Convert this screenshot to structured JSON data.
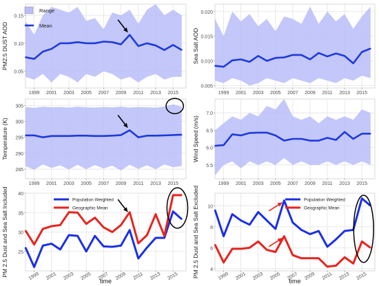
{
  "chart_data": [
    {
      "type": "area",
      "ylabel": "PM2.5 DUST AOD",
      "xlim": [
        1998,
        2016.5
      ],
      "ylim": [
        0.02,
        0.17
      ],
      "yticks": [
        0.05,
        0.1,
        0.15
      ],
      "yticklabels": [
        "0.05",
        "0.10",
        "0.15"
      ],
      "xticks": [
        1999,
        2001,
        2003,
        2005,
        2007,
        2009,
        2011,
        2013,
        2015
      ],
      "xticklabels": [
        "1999",
        "2001",
        "2003",
        "2005",
        "2007",
        "2009",
        "2011",
        "2013",
        "2015"
      ],
      "x": [
        1998,
        1999,
        2000,
        2001,
        2002,
        2003,
        2004,
        2005,
        2006,
        2007,
        2008,
        2009,
        2010,
        2011,
        2012,
        2013,
        2014,
        2015,
        2016
      ],
      "band": {
        "name": "Range",
        "upper": [
          0.14,
          0.115,
          0.15,
          0.165,
          0.16,
          0.155,
          0.165,
          0.14,
          0.145,
          0.125,
          0.155,
          0.15,
          0.16,
          0.135,
          0.16,
          0.17,
          0.15,
          0.16,
          0.15
        ],
        "lower": [
          0.04,
          0.035,
          0.045,
          0.03,
          0.045,
          0.04,
          0.03,
          0.045,
          0.04,
          0.05,
          0.045,
          0.035,
          0.04,
          0.03,
          0.04,
          0.045,
          0.035,
          0.04,
          0.04
        ]
      },
      "series": [
        {
          "name": "Mean",
          "values": [
            0.075,
            0.072,
            0.085,
            0.09,
            0.1,
            0.1,
            0.102,
            0.1,
            0.1,
            0.103,
            0.102,
            0.098,
            0.115,
            0.095,
            0.1,
            0.096,
            0.088,
            0.097,
            0.088
          ]
        }
      ],
      "legend": [
        "Range",
        "Mean"
      ],
      "legend_position": "top-left",
      "arrow": {
        "x": 2010,
        "y": 0.115
      },
      "colors": {
        "band": "#b9bdf8",
        "line": "#1d3adb"
      },
      "grid": true
    },
    {
      "type": "area",
      "ylabel": "Sea Salt AOD",
      "xlim": [
        1998,
        2016.5
      ],
      "ylim": [
        0.0045,
        0.0215
      ],
      "yticks": [
        0.005,
        0.01,
        0.015,
        0.02
      ],
      "yticklabels": [
        "0.005",
        "0.010",
        "0.015",
        "0.020"
      ],
      "xticks": [
        1999,
        2001,
        2003,
        2005,
        2007,
        2009,
        2011,
        2013,
        2015
      ],
      "xticklabels": [
        "1999",
        "2001",
        "2003",
        "2005",
        "2007",
        "2009",
        "2011",
        "2013",
        "2015"
      ],
      "x": [
        1998,
        1999,
        2000,
        2001,
        2002,
        2003,
        2004,
        2005,
        2006,
        2007,
        2008,
        2009,
        2010,
        2011,
        2012,
        2013,
        2014,
        2015,
        2016
      ],
      "band": {
        "upper": [
          0.0185,
          0.015,
          0.02,
          0.018,
          0.0195,
          0.017,
          0.0185,
          0.016,
          0.019,
          0.0185,
          0.0175,
          0.021,
          0.0175,
          0.02,
          0.018,
          0.0195,
          0.0165,
          0.019,
          0.021
        ],
        "lower": [
          0.006,
          0.0055,
          0.0065,
          0.006,
          0.005,
          0.0055,
          0.0065,
          0.006,
          0.0055,
          0.0065,
          0.006,
          0.0055,
          0.0065,
          0.006,
          0.0055,
          0.0065,
          0.006,
          0.007,
          0.0065
        ]
      },
      "series": [
        {
          "values": [
            0.009,
            0.0088,
            0.0101,
            0.0103,
            0.0098,
            0.011,
            0.01,
            0.0106,
            0.0107,
            0.0112,
            0.0112,
            0.0103,
            0.0116,
            0.0109,
            0.0115,
            0.011,
            0.0095,
            0.0118,
            0.0125
          ]
        }
      ],
      "colors": {
        "band": "#b9bdf8",
        "line": "#1d3adb"
      },
      "grid": true
    },
    {
      "type": "area",
      "ylabel": "Temperature (K)",
      "xlim": [
        1998,
        2016.5
      ],
      "ylim": [
        282,
        307
      ],
      "yticks": [
        285,
        290,
        295,
        300,
        305
      ],
      "yticklabels": [
        "285",
        "290",
        "295",
        "300",
        "305"
      ],
      "xticks": [
        1999,
        2001,
        2003,
        2005,
        2007,
        2009,
        2011,
        2013,
        2015
      ],
      "xticklabels": [
        "1999",
        "2001",
        "2003",
        "2005",
        "2007",
        "2009",
        "2011",
        "2013",
        "2015"
      ],
      "x": [
        1998,
        1999,
        2000,
        2001,
        2002,
        2003,
        2004,
        2005,
        2006,
        2007,
        2008,
        2009,
        2010,
        2011,
        2012,
        2013,
        2014,
        2015,
        2016
      ],
      "band": {
        "upper": [
          304.5,
          304.2,
          304.6,
          304.4,
          304.5,
          304.3,
          304.6,
          304.4,
          304.3,
          304.5,
          304.4,
          304.6,
          304.3,
          304.5,
          304.4,
          304.3,
          304.6,
          305.3,
          304.6
        ],
        "lower": [
          286,
          284.8,
          286.5,
          285.4,
          286.2,
          284.9,
          286.4,
          285,
          286.3,
          285.2,
          286.1,
          284.6,
          286.4,
          285.1,
          286.2,
          285,
          286.5,
          285.6,
          286
        ]
      },
      "series": [
        {
          "values": [
            295.6,
            295.6,
            295.0,
            295.4,
            295.4,
            295.4,
            295.5,
            295.5,
            295.4,
            295.4,
            295.5,
            295.7,
            297.2,
            295.0,
            295.5,
            295.5,
            295.6,
            295.7,
            295.8
          ]
        }
      ],
      "arrow": {
        "x": 2010,
        "y": 297.2
      },
      "ellipse": {
        "cx": 2015.2,
        "cy": 304.8,
        "rx": 1.0,
        "ry": 2.4
      },
      "colors": {
        "band": "#b9bdf8",
        "line": "#1d3adb"
      },
      "grid": true
    },
    {
      "type": "area",
      "ylabel": "Wind Speed (m/s)",
      "xlim": [
        1998,
        2016.5
      ],
      "ylim": [
        5.1,
        7.4
      ],
      "yticks": [
        5.5,
        6.0,
        6.5,
        7.0
      ],
      "yticklabels": [
        "5.5",
        "6.0",
        "6.5",
        "7.0"
      ],
      "xticks": [
        1999,
        2001,
        2003,
        2005,
        2007,
        2009,
        2011,
        2013,
        2015
      ],
      "xticklabels": [
        "1999",
        "2001",
        "2003",
        "2005",
        "2007",
        "2009",
        "2011",
        "2013",
        "2015"
      ],
      "x": [
        1998,
        1999,
        2000,
        2001,
        2002,
        2003,
        2004,
        2005,
        2006,
        2007,
        2008,
        2009,
        2010,
        2011,
        2012,
        2013,
        2014,
        2015,
        2016
      ],
      "band": {
        "upper": [
          6.5,
          6.7,
          6.9,
          6.8,
          7.0,
          6.9,
          7.2,
          7.1,
          7.4,
          6.9,
          6.8,
          6.9,
          6.7,
          6.9,
          6.8,
          6.9,
          6.8,
          7.1,
          7.0
        ],
        "lower": [
          5.2,
          5.5,
          5.6,
          5.4,
          5.6,
          5.5,
          5.6,
          5.5,
          5.7,
          5.5,
          5.6,
          5.5,
          5.5,
          5.6,
          5.5,
          5.6,
          5.5,
          5.6,
          5.5
        ]
      },
      "series": [
        {
          "values": [
            6.05,
            6.07,
            6.38,
            6.35,
            6.42,
            6.43,
            6.43,
            6.35,
            6.2,
            6.25,
            6.25,
            6.2,
            6.2,
            6.28,
            6.22,
            6.45,
            6.25,
            6.4,
            6.4
          ]
        }
      ],
      "colors": {
        "band": "#b9bdf8",
        "line": "#1d3adb"
      },
      "grid": true
    },
    {
      "type": "line",
      "ylabel": "PM 2.5 Dust and Sea Salt Included",
      "xlabel": "time",
      "xlim": [
        1998,
        2016.5
      ],
      "ylim": [
        20,
        40
      ],
      "yticks": [
        25,
        30,
        35,
        40
      ],
      "yticklabels": [
        "25",
        "30",
        "35",
        "40"
      ],
      "xticks": [
        1999,
        2001,
        2003,
        2005,
        2007,
        2009,
        2011,
        2013,
        2015
      ],
      "xticklabels": [
        "1999",
        "2001",
        "2003",
        "2005",
        "2007",
        "2009",
        "2011",
        "2013",
        "2015"
      ],
      "x": [
        1998,
        1999,
        2000,
        2001,
        2002,
        2003,
        2004,
        2005,
        2006,
        2007,
        2008,
        2009,
        2010,
        2011,
        2012,
        2013,
        2014,
        2015,
        2016
      ],
      "series": [
        {
          "name": "Population Weighted",
          "values": [
            26,
            21,
            26.5,
            27,
            25.5,
            29.2,
            29,
            25,
            29,
            26.3,
            26.2,
            26.5,
            30.5,
            23.2,
            26,
            28.5,
            28.5,
            35.3,
            33.3
          ]
        },
        {
          "name": "Geographic Mean",
          "values": [
            30.4,
            26.8,
            30.8,
            31.5,
            31.8,
            35.1,
            35,
            32.1,
            33.7,
            31.2,
            30,
            31.8,
            35.1,
            27.1,
            29.2,
            34.6,
            29,
            39.5,
            39.5
          ]
        }
      ],
      "legend_position": "top-left",
      "arrow": {
        "x": 2010,
        "y": 34.5
      },
      "ellipse": {
        "cx": 2015.5,
        "cy": 36.2,
        "rx": 1.2,
        "ry": 5.2
      },
      "colors": {
        "Population Weighted": "#1a2fe6",
        "Geographic Mean": "#e8231d"
      },
      "grid": true
    },
    {
      "type": "line",
      "ylabel": "PM 2.5 Dust and Sea Salt Excluded",
      "xlabel": "time",
      "xlim": [
        1998,
        2016.5
      ],
      "ylim": [
        3.8,
        11.2
      ],
      "yticks": [
        4,
        6,
        8,
        10
      ],
      "yticklabels": [
        "4",
        "6",
        "8",
        "10"
      ],
      "xticks": [
        1999,
        2001,
        2003,
        2005,
        2007,
        2009,
        2011,
        2013,
        2015
      ],
      "xticklabels": [
        "1999",
        "2001",
        "2003",
        "2005",
        "2007",
        "2009",
        "2011",
        "2013",
        "2015"
      ],
      "x": [
        1998,
        1999,
        2000,
        2001,
        2002,
        2003,
        2004,
        2005,
        2006,
        2007,
        2008,
        2009,
        2010,
        2011,
        2012,
        2013,
        2014,
        2015,
        2016
      ],
      "series": [
        {
          "name": "Population Weighted",
          "values": [
            9.6,
            7.1,
            9.2,
            8.6,
            8.2,
            9.4,
            8.6,
            7.8,
            10.5,
            8.4,
            7.7,
            7.3,
            7.6,
            6.1,
            6.8,
            7.6,
            7.7,
            10.7,
            10
          ],
          "arrow": {
            "x": 2006,
            "y": 10.5
          }
        },
        {
          "name": "Geographic Mean",
          "values": [
            6.3,
            4.6,
            5.9,
            5.9,
            6.0,
            6.6,
            5.8,
            5.6,
            7.1,
            5.3,
            5.0,
            5.0,
            5.0,
            4.2,
            4.3,
            5.1,
            4.5,
            6.6,
            6.0
          ],
          "arrow": {
            "x": 2006,
            "y": 7.1
          }
        }
      ],
      "legend_position": "top-left",
      "ellipse": {
        "cx": 2015.2,
        "cy": 7.8,
        "rx": 1.15,
        "ry": 3.2
      },
      "colors": {
        "Population Weighted": "#1a2fe6",
        "Geographic Mean": "#e8231d"
      },
      "grid": true
    }
  ]
}
